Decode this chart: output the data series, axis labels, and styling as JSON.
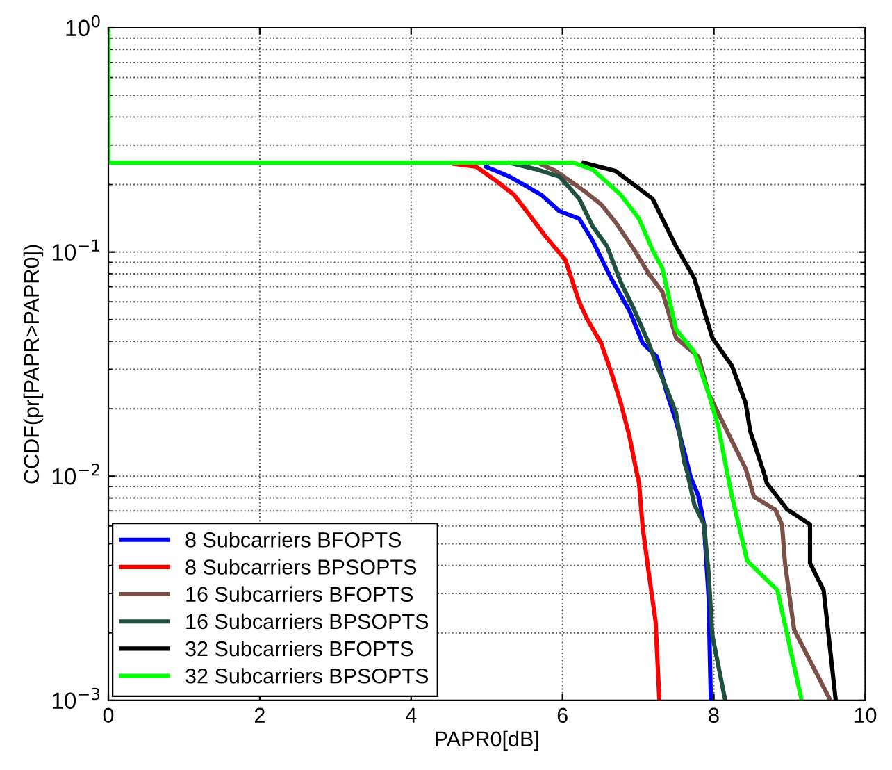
{
  "chart_data": {
    "type": "line",
    "xlabel": "PAPR0[dB]",
    "ylabel": "CCDF(pr[PAPR>PAPR0])",
    "log": "y",
    "grid": true,
    "legend": "bottom left",
    "line_style": "solid",
    "marker": "none",
    "xlim": [
      0,
      10
    ],
    "xticks": [
      0,
      2,
      4,
      6,
      8,
      10
    ],
    "ylim": [
      0.001,
      1
    ],
    "yticks": [
      {
        "value": 0.001,
        "label": "10$^{−3}$"
      },
      {
        "value": 0.01,
        "label": "10$^{−2}$"
      },
      {
        "value": 0.1,
        "label": "10$^{−1}$"
      },
      {
        "value": 1,
        "label": "10$^{0}$"
      }
    ],
    "series": [
      {
        "name": "8 Subcarriers BFOPTS",
        "color": "#0000ff",
        "x": [
          4.99,
          5.3,
          5.72,
          5.96,
          6.22,
          6.4,
          6.64,
          6.88,
          7.06,
          7.25,
          7.38,
          7.5,
          7.6,
          7.69,
          7.8,
          7.87,
          7.93,
          7.96
        ],
        "values": [
          0.24,
          0.217,
          0.18,
          0.152,
          0.141,
          0.112,
          0.0766,
          0.0551,
          0.0392,
          0.034,
          0.0234,
          0.0176,
          0.0132,
          0.01,
          0.0081,
          0.0061,
          0.0029,
          0.001
        ]
      },
      {
        "name": "8 Subcarriers BPSOPTS",
        "color": "#ff0000",
        "x": [
          4.57,
          4.86,
          5.12,
          5.36,
          5.54,
          5.78,
          6.04,
          6.22,
          6.33,
          6.51,
          6.64,
          6.77,
          6.88,
          6.97,
          7.01,
          7.06,
          7.14,
          7.23,
          7.28
        ],
        "values": [
          0.247,
          0.24,
          0.208,
          0.18,
          0.15,
          0.117,
          0.092,
          0.06,
          0.0499,
          0.0392,
          0.0294,
          0.0212,
          0.0153,
          0.0108,
          0.0094,
          0.0059,
          0.0037,
          0.00225,
          0.001
        ]
      },
      {
        "name": "16 Subcarriers BFOPTS",
        "color": "#7a5048",
        "x": [
          5.67,
          5.91,
          6.28,
          6.51,
          6.7,
          6.95,
          7.14,
          7.32,
          7.5,
          7.8,
          7.93,
          8.11,
          8.42,
          8.53,
          8.81,
          8.9,
          8.94,
          9.06,
          9.54
        ],
        "values": [
          0.25,
          0.23,
          0.188,
          0.163,
          0.136,
          0.102,
          0.08,
          0.0664,
          0.0414,
          0.034,
          0.0234,
          0.0176,
          0.0108,
          0.0081,
          0.0071,
          0.0061,
          0.0041,
          0.00207,
          0.001
        ]
      },
      {
        "name": "16 Subcarriers BPSOPTS",
        "color": "#1f5040",
        "x": [
          5.3,
          5.67,
          5.96,
          6.22,
          6.4,
          6.59,
          6.77,
          6.95,
          7.14,
          7.25,
          7.38,
          7.5,
          7.61,
          7.65,
          7.74,
          7.87,
          7.93,
          7.98,
          8.15
        ],
        "values": [
          0.25,
          0.233,
          0.217,
          0.173,
          0.13,
          0.106,
          0.0733,
          0.0551,
          0.0392,
          0.031,
          0.0244,
          0.0192,
          0.0115,
          0.0104,
          0.0075,
          0.0061,
          0.0037,
          0.00195,
          0.001
        ]
      },
      {
        "name": "32 Subcarriers BFOPTS",
        "color": "#000000",
        "x": [
          6.28,
          6.7,
          7.19,
          7.5,
          7.74,
          7.98,
          8.24,
          8.42,
          8.48,
          8.66,
          8.7,
          8.97,
          9.27,
          9.27,
          9.45,
          9.61
        ],
        "values": [
          0.25,
          0.23,
          0.173,
          0.106,
          0.0766,
          0.0414,
          0.031,
          0.0212,
          0.0159,
          0.0104,
          0.0093,
          0.0071,
          0.0061,
          0.0041,
          0.0031,
          0.001
        ]
      },
      {
        "name": "32 Subcarriers BPSOPTS",
        "color": "#00ff00",
        "x": [
          0,
          0,
          6.15,
          6.4,
          6.77,
          7.01,
          7.19,
          7.32,
          7.5,
          7.74,
          7.93,
          8.06,
          8.15,
          8.24,
          8.44,
          8.84,
          9.16
        ],
        "values": [
          1,
          0.25,
          0.25,
          0.233,
          0.18,
          0.141,
          0.102,
          0.0846,
          0.0452,
          0.0359,
          0.0234,
          0.0166,
          0.0115,
          0.0081,
          0.0042,
          0.0031,
          0.001
        ]
      }
    ]
  }
}
